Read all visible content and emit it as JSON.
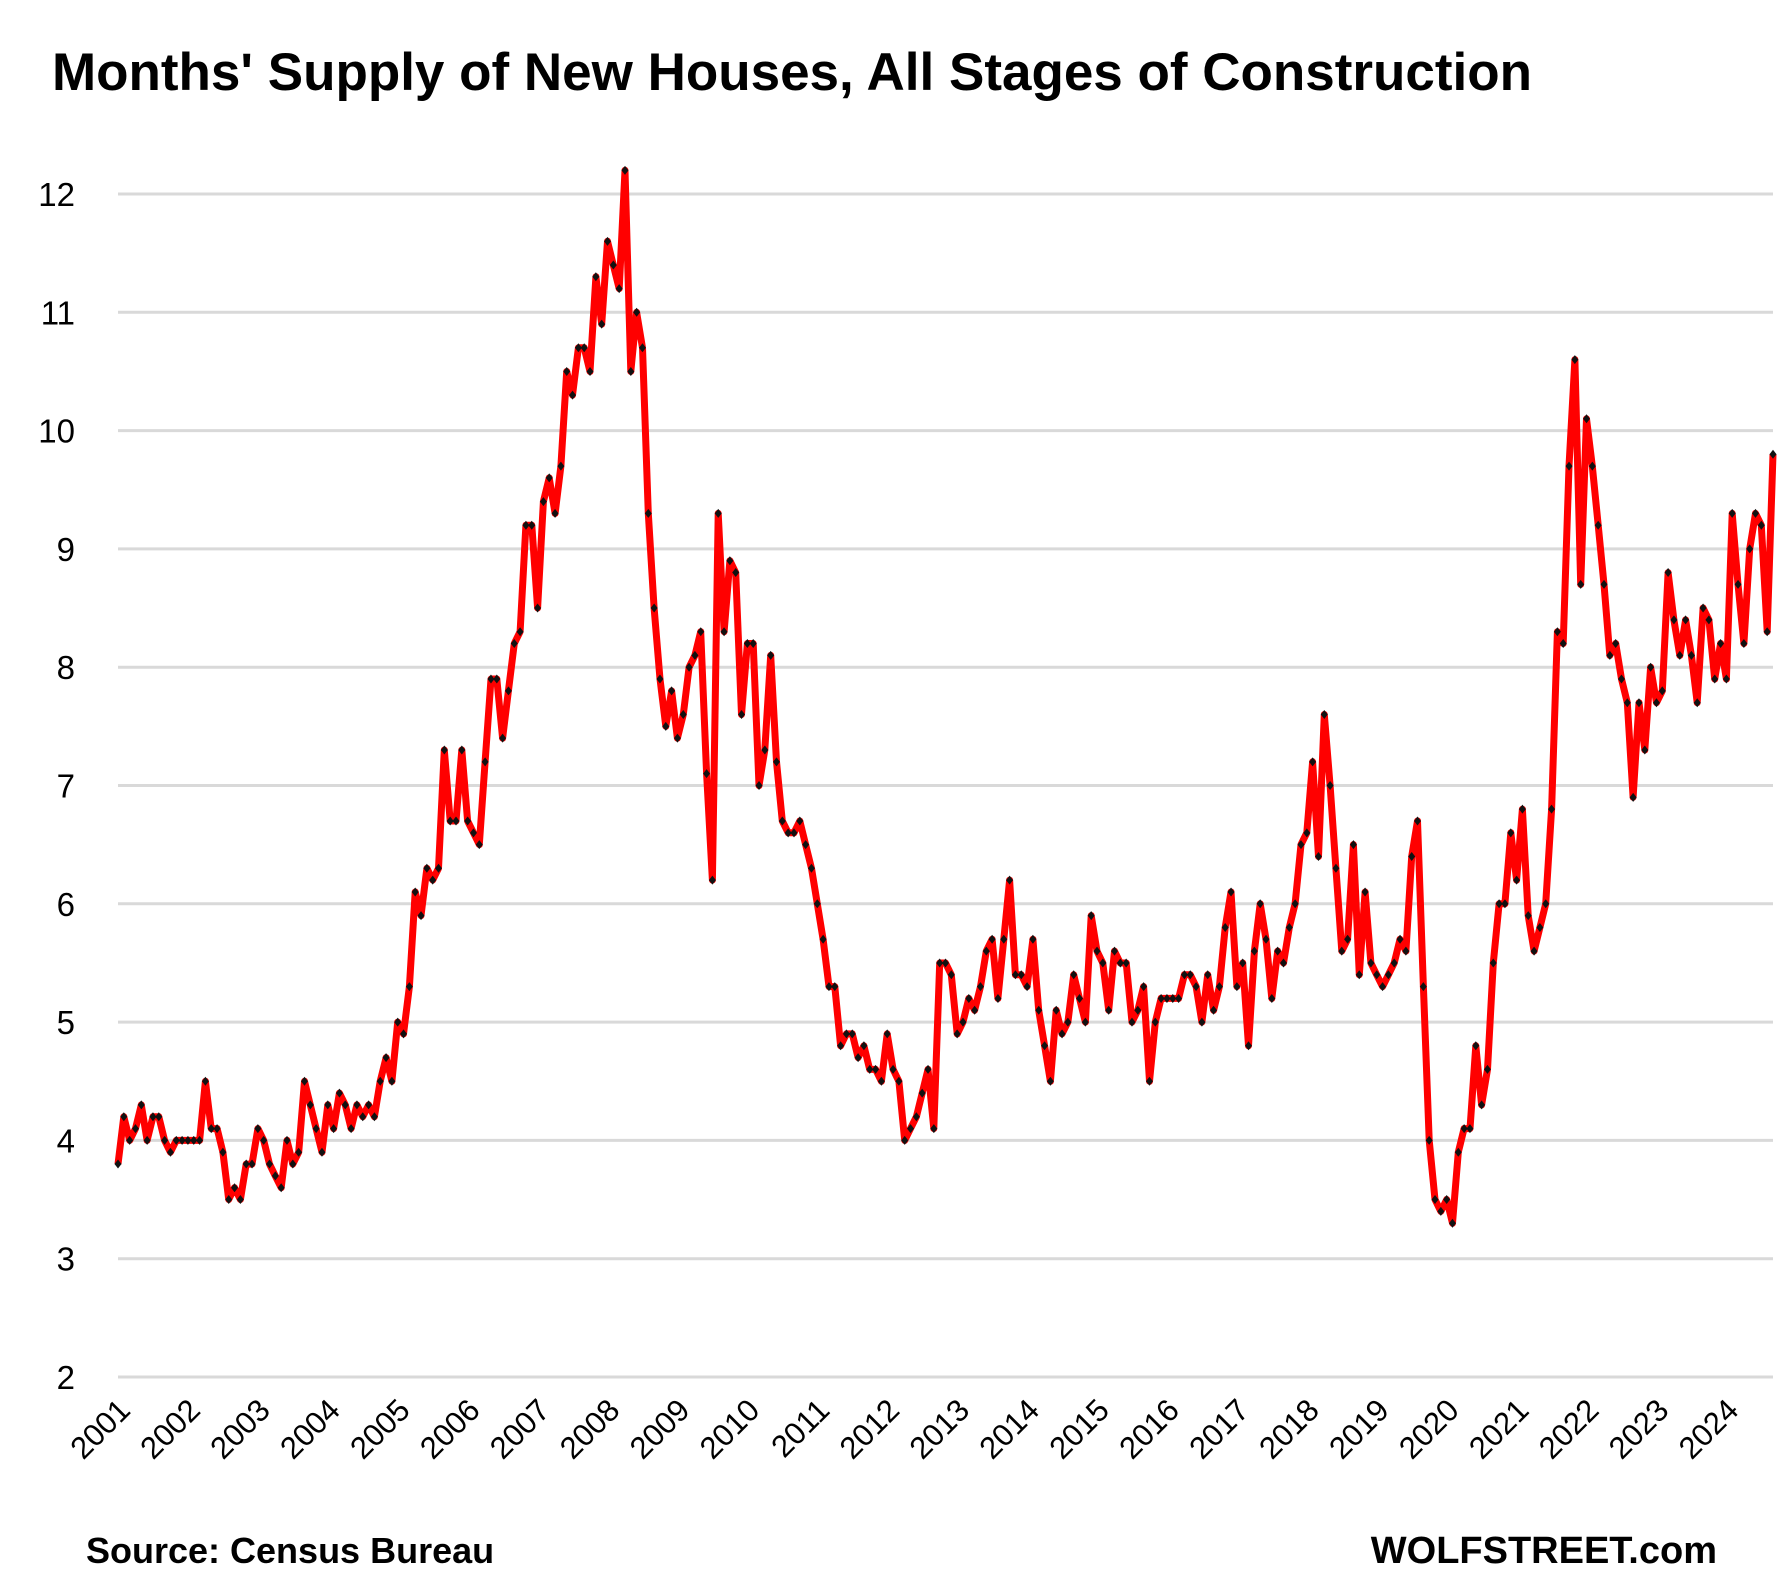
{
  "chart_data": {
    "type": "line",
    "title": "Months' Supply of New Houses, All Stages of Construction",
    "xlabel": "",
    "ylabel": "",
    "ylim": [
      2,
      12
    ],
    "yticks": [
      "2",
      "3",
      "4",
      "5",
      "6",
      "7",
      "8",
      "9",
      "10",
      "11",
      "12"
    ],
    "grid": true,
    "legend": "none",
    "line_color": "#ff0000",
    "marker_color": "#111111",
    "grid_color": "#d9d9d9",
    "x_tick_labels": [
      "2001",
      "2002",
      "2003",
      "2004",
      "2005",
      "2006",
      "2007",
      "2008",
      "2009",
      "2010",
      "2011",
      "2012",
      "2013",
      "2014",
      "2015",
      "2016",
      "2017",
      "2018",
      "2019",
      "2020",
      "2021",
      "2022",
      "2023",
      "2024"
    ],
    "start": "2001-01",
    "frequency": "monthly",
    "series": [
      {
        "name": "Months' supply",
        "values": [
          3.8,
          4.2,
          4.0,
          4.1,
          4.3,
          4.0,
          4.2,
          4.2,
          4.0,
          3.9,
          4.0,
          4.0,
          4.0,
          4.0,
          4.0,
          4.5,
          4.1,
          4.1,
          3.9,
          3.5,
          3.6,
          3.5,
          3.8,
          3.8,
          4.1,
          4.0,
          3.8,
          3.7,
          3.6,
          4.0,
          3.8,
          3.9,
          4.5,
          4.3,
          4.1,
          3.9,
          4.3,
          4.1,
          4.4,
          4.3,
          4.1,
          4.3,
          4.2,
          4.3,
          4.2,
          4.5,
          4.7,
          4.5,
          5.0,
          4.9,
          5.3,
          6.1,
          5.9,
          6.3,
          6.2,
          6.3,
          7.3,
          6.7,
          6.7,
          7.3,
          6.7,
          6.6,
          6.5,
          7.2,
          7.9,
          7.9,
          7.4,
          7.8,
          8.2,
          8.3,
          9.2,
          9.2,
          8.5,
          9.4,
          9.6,
          9.3,
          9.7,
          10.5,
          10.3,
          10.7,
          10.7,
          10.5,
          11.3,
          10.9,
          11.6,
          11.4,
          11.2,
          12.2,
          10.5,
          11.0,
          10.7,
          9.3,
          8.5,
          7.9,
          7.5,
          7.8,
          7.4,
          7.6,
          8.0,
          8.1,
          8.3,
          7.1,
          6.2,
          9.3,
          8.3,
          8.9,
          8.8,
          7.6,
          8.2,
          8.2,
          7.0,
          7.3,
          8.1,
          7.2,
          6.7,
          6.6,
          6.6,
          6.7,
          6.5,
          6.3,
          6.0,
          5.7,
          5.3,
          5.3,
          4.8,
          4.9,
          4.9,
          4.7,
          4.8,
          4.6,
          4.6,
          4.5,
          4.9,
          4.6,
          4.5,
          4.0,
          4.1,
          4.2,
          4.4,
          4.6,
          4.1,
          5.5,
          5.5,
          5.4,
          4.9,
          5.0,
          5.2,
          5.1,
          5.3,
          5.6,
          5.7,
          5.2,
          5.7,
          6.2,
          5.4,
          5.4,
          5.3,
          5.7,
          5.1,
          4.8,
          4.5,
          5.1,
          4.9,
          5.0,
          5.4,
          5.2,
          5.0,
          5.9,
          5.6,
          5.5,
          5.1,
          5.6,
          5.5,
          5.5,
          5.0,
          5.1,
          5.3,
          4.5,
          5.0,
          5.2,
          5.2,
          5.2,
          5.2,
          5.4,
          5.4,
          5.3,
          5.0,
          5.4,
          5.1,
          5.3,
          5.8,
          6.1,
          5.3,
          5.5,
          4.8,
          5.6,
          6.0,
          5.7,
          5.2,
          5.6,
          5.5,
          5.8,
          6.0,
          6.5,
          6.6,
          7.2,
          6.4,
          7.6,
          7.0,
          6.3,
          5.6,
          5.7,
          6.5,
          5.4,
          6.1,
          5.5,
          5.4,
          5.3,
          5.4,
          5.5,
          5.7,
          5.6,
          6.4,
          6.7,
          5.3,
          4.0,
          3.5,
          3.4,
          3.5,
          3.3,
          3.9,
          4.1,
          4.1,
          4.8,
          4.3,
          4.6,
          5.5,
          6.0,
          6.0,
          6.6,
          6.2,
          6.8,
          5.9,
          5.6,
          5.8,
          6.0,
          6.8,
          8.3,
          8.2,
          9.7,
          10.6,
          8.7,
          10.1,
          9.7,
          9.2,
          8.7,
          8.1,
          8.2,
          7.9,
          7.7,
          6.9,
          7.7,
          7.3,
          8.0,
          7.7,
          7.8,
          8.8,
          8.4,
          8.1,
          8.4,
          8.1,
          7.7,
          8.5,
          8.4,
          7.9,
          8.2,
          7.9,
          9.3,
          8.7,
          8.2,
          9.0,
          9.3,
          9.2,
          8.3,
          9.8
        ]
      }
    ]
  },
  "footer": {
    "source": "Source: Census Bureau",
    "brand": "WOLFSTREET.com"
  }
}
